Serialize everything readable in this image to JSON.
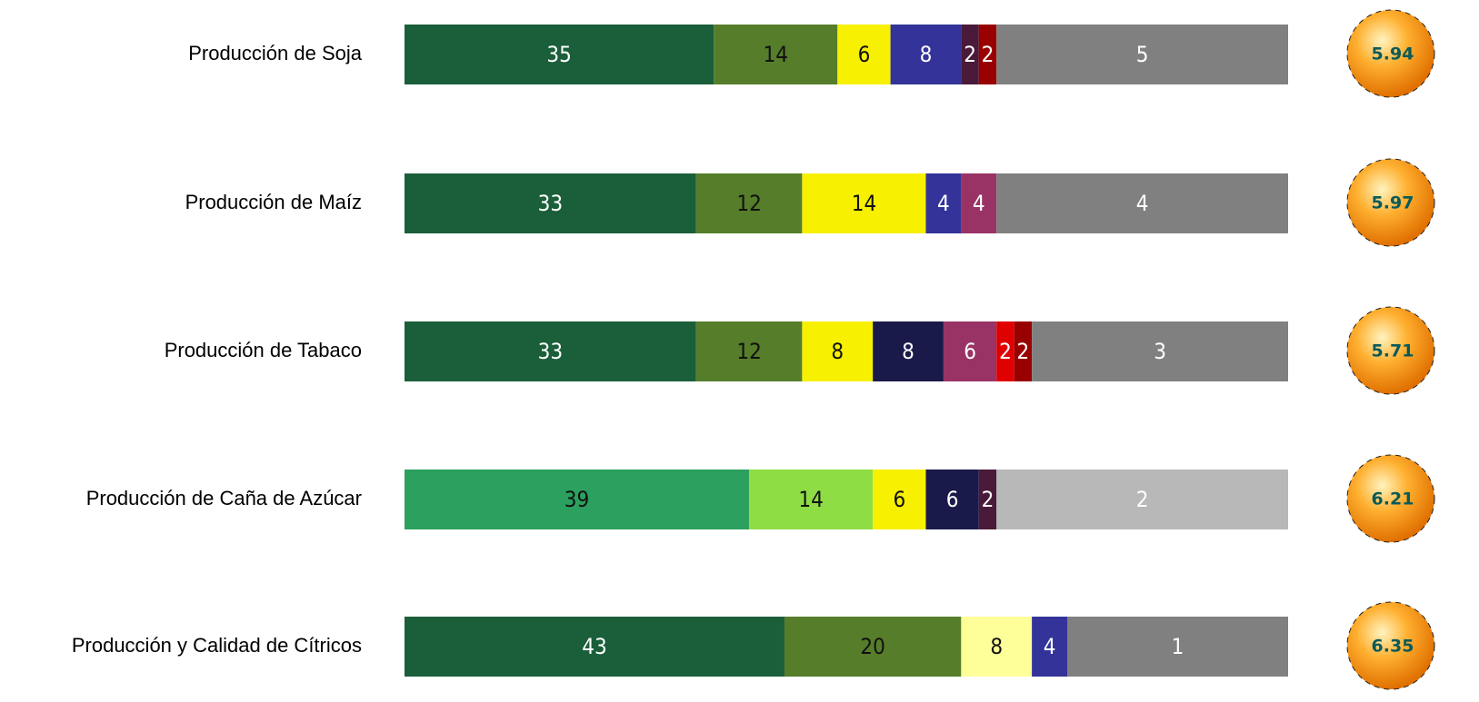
{
  "chart_data": {
    "type": "stacked-bar-horizontal",
    "categories": [
      "Producción de Soja",
      "Producción de Maíz",
      "Producción de Tabaco",
      "Producción de Caña de Azúcar",
      "Producción y Calidad de Cítricos"
    ],
    "segments": [
      [
        35,
        14,
        6,
        8,
        2,
        2
      ],
      [
        33,
        12,
        14,
        4,
        4
      ],
      [
        33,
        12,
        8,
        8,
        6,
        2,
        2
      ],
      [
        39,
        14,
        6,
        6,
        2
      ],
      [
        43,
        20,
        8,
        4
      ]
    ],
    "colors": [
      [
        "#1a5e3a",
        "#567d2a",
        "#f7f000",
        "#333399",
        "#4a1a3a",
        "#990000"
      ],
      [
        "#1a5e3a",
        "#567d2a",
        "#f7f000",
        "#333399",
        "#993366"
      ],
      [
        "#1a5e3a",
        "#567d2a",
        "#f7f000",
        "#1a1a4a",
        "#993366",
        "#e00000",
        "#990000"
      ],
      [
        "#2ca05f",
        "#8fdd44",
        "#f7f000",
        "#1a1a4a",
        "#4a1a3a"
      ],
      [
        "#1a5e3a",
        "#567d2a",
        "#ffff99",
        "#333399"
      ]
    ],
    "rest_values": [
      5,
      4,
      3,
      2,
      1
    ],
    "rest_colors": [
      "#808080",
      "#808080",
      "#808080",
      "#b8b8b8",
      "#808080"
    ],
    "scores": [
      5.94,
      5.97,
      5.71,
      6.21,
      6.35
    ],
    "xlim": [
      0,
      100
    ]
  }
}
